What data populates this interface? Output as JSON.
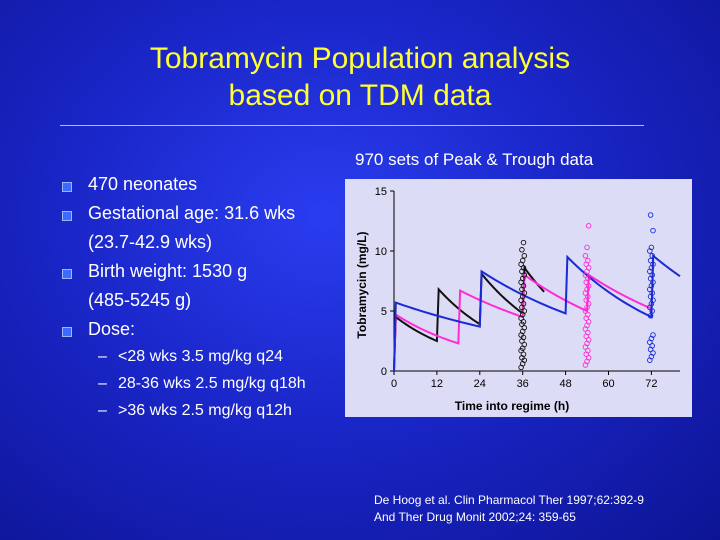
{
  "slide": {
    "title_line1": "Tobramycin Population analysis",
    "title_line2": "based on TDM data"
  },
  "bullets": [
    {
      "text": "470 neonates"
    },
    {
      "text": "Gestational age:  31.6 wks"
    },
    {
      "text": "(23.7-42.9 wks)"
    },
    {
      "text": "Birth weight: 1530 g"
    },
    {
      "text": "(485-5245 g)"
    },
    {
      "text": "Dose:"
    }
  ],
  "dose_items": [
    {
      "dash": "–",
      "text": "<28 wks 3.5 mg/kg q24"
    },
    {
      "dash": "–",
      "text": "28-36 wks 2.5 mg/kg q18h"
    },
    {
      "dash": "–",
      "text": ">36 wks 2.5 mg/kg q12h"
    }
  ],
  "reference": {
    "line1": "De Hoog et al. Clin Pharmacol Ther 1997;62:392-9",
    "line2": "And Ther Drug Monit 2002;24: 359-65"
  },
  "colors": {
    "title": "#ffff33",
    "bullet": "#3b6cff",
    "black_series": "#111111",
    "magenta_series": "#ff2bd6",
    "blue_series": "#1a2ad4"
  },
  "chart_data": {
    "type": "line",
    "caption": "970 sets of Peak & Trough data",
    "xlabel": "Time into regime (h)",
    "ylabel": "Tobramycin (mg/L)",
    "xlim": [
      0,
      80
    ],
    "ylim": [
      0,
      15
    ],
    "xticks": [
      0,
      12,
      24,
      36,
      48,
      60,
      72
    ],
    "yticks": [
      0,
      5,
      10,
      15
    ],
    "grid": false,
    "series": [
      {
        "color": "#111111",
        "x": [
          0,
          0.5,
          12,
          12.5,
          24,
          24.5,
          36,
          36.5,
          42
        ],
        "y": [
          0,
          4.5,
          2.5,
          6.8,
          3.9,
          8.1,
          4.8,
          8.6,
          6.6
        ]
      },
      {
        "color": "#ff2bd6",
        "x": [
          0,
          0.5,
          18,
          18.5,
          36,
          36.5,
          54,
          54.5,
          72
        ],
        "y": [
          0,
          4.7,
          2.3,
          6.7,
          4.5,
          8.0,
          5.0,
          8.0,
          5.2
        ]
      },
      {
        "color": "#1a2ad4",
        "x": [
          0,
          0.5,
          24,
          24.5,
          48,
          48.5,
          72,
          72.5,
          80
        ],
        "y": [
          0,
          5.7,
          3.7,
          8.3,
          4.8,
          9.5,
          4.5,
          9.6,
          7.9
        ]
      }
    ],
    "scatter_groups": [
      {
        "color": "#111111",
        "x": 36,
        "y": [
          0.3,
          0.6,
          0.9,
          1.1,
          1.4,
          1.7,
          1.9,
          2.2,
          2.5,
          2.8,
          3.0,
          3.3,
          3.6,
          3.9,
          4.1,
          4.4,
          4.7,
          5.0,
          5.3,
          5.6,
          5.9,
          6.2,
          6.5,
          6.8,
          7.1,
          7.4,
          7.7,
          8.0,
          8.3,
          8.6,
          8.9,
          9.2,
          9.6,
          10.1,
          10.7
        ]
      },
      {
        "color": "#ff2bd6",
        "x": 54,
        "y": [
          0.5,
          0.8,
          1.1,
          1.4,
          1.7,
          2.0,
          2.3,
          2.6,
          2.9,
          3.2,
          3.5,
          3.8,
          4.1,
          4.4,
          4.7,
          5.0,
          5.3,
          5.6,
          5.9,
          6.2,
          6.5,
          6.8,
          7.1,
          7.4,
          7.7,
          8.0,
          8.3,
          8.6,
          8.9,
          9.2,
          9.6,
          10.3,
          12.1
        ]
      },
      {
        "color": "#1a2ad4",
        "x": 72,
        "y": [
          0.9,
          1.2,
          1.5,
          1.8,
          2.1,
          2.4,
          2.7,
          3.0,
          4.6,
          5.0,
          5.3,
          5.6,
          5.9,
          6.2,
          6.5,
          6.8,
          7.1,
          7.4,
          7.7,
          8.0,
          8.3,
          8.6,
          8.9,
          9.2,
          9.6,
          10.0,
          10.3,
          11.7,
          13.0
        ]
      }
    ]
  }
}
